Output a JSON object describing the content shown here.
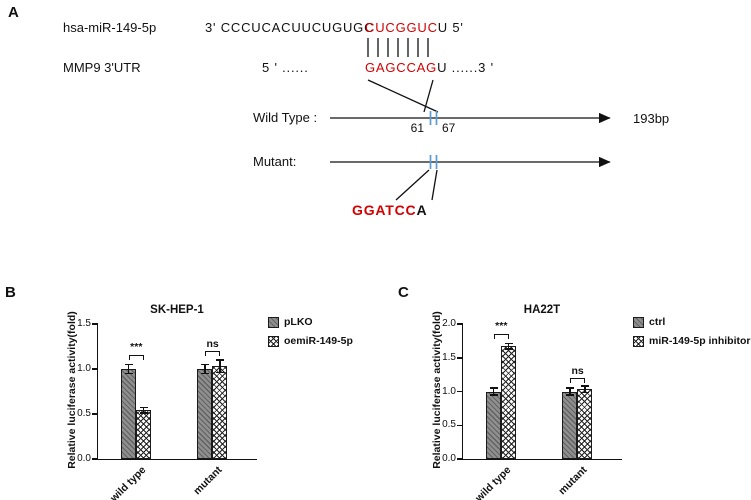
{
  "panels": {
    "a": "A",
    "b": "B",
    "c": "C"
  },
  "panelA": {
    "mirna_name": "hsa-miR-149-5p",
    "seq1_prefix": "3' CCCUCACUUCUGUGC",
    "seq1_site": "CUCGGUC",
    "seq1_suffix": "U 5'",
    "utr_name": "MMP9 3'UTR",
    "seq2_prefix": "5 ' ......",
    "seq2_site": "GAGCCAG",
    "seq2_suffix": "U ......3 '",
    "wild_type_label": "Wild Type :",
    "site_start": "61",
    "site_end": "67",
    "fragment_length": "193bp",
    "mutant_label": "Mutant:",
    "mutant_site": "GGATCC",
    "mutant_site_suffix": "A",
    "site_color": "#d40000",
    "tick_color": "#5b9bd5"
  },
  "chart_data": [
    {
      "type": "bar",
      "title": "SK-HEP-1",
      "ylabel": "Relative luciferase activity(fold)",
      "categories": [
        "wild type",
        "mutant"
      ],
      "series": [
        {
          "name": "pLKO",
          "pattern": "diagonal-gray",
          "values": [
            1.0,
            1.0
          ],
          "errors": [
            0.05,
            0.05
          ]
        },
        {
          "name": "oemiR-149-5p",
          "pattern": "crosshatch-white",
          "values": [
            0.54,
            1.03
          ],
          "errors": [
            0.03,
            0.07
          ]
        }
      ],
      "ylim": [
        0,
        1.5
      ],
      "yticks": [
        0.0,
        0.5,
        1.0,
        1.5
      ],
      "grid": false,
      "legend_position": "right",
      "annotations": [
        {
          "group": "wild type",
          "label": "***",
          "y": 1.16
        },
        {
          "group": "mutant",
          "label": "ns",
          "y": 1.2
        }
      ]
    },
    {
      "type": "bar",
      "title": "HA22T",
      "ylabel": "Relative luciferase activity(fold)",
      "categories": [
        "wild type",
        "mutant"
      ],
      "series": [
        {
          "name": "ctrl",
          "pattern": "diagonal-gray",
          "values": [
            1.0,
            1.0
          ],
          "errors": [
            0.05,
            0.05
          ]
        },
        {
          "name": "miR-149-5p inhibitor",
          "pattern": "crosshatch-white",
          "values": [
            1.67,
            1.03
          ],
          "errors": [
            0.04,
            0.05
          ]
        }
      ],
      "ylim": [
        0,
        2.0
      ],
      "yticks": [
        0.0,
        0.5,
        1.0,
        1.5,
        2.0
      ],
      "grid": false,
      "legend_position": "right",
      "annotations": [
        {
          "group": "wild type",
          "label": "***",
          "y": 1.85
        },
        {
          "group": "mutant",
          "label": "ns",
          "y": 1.2
        }
      ]
    }
  ]
}
